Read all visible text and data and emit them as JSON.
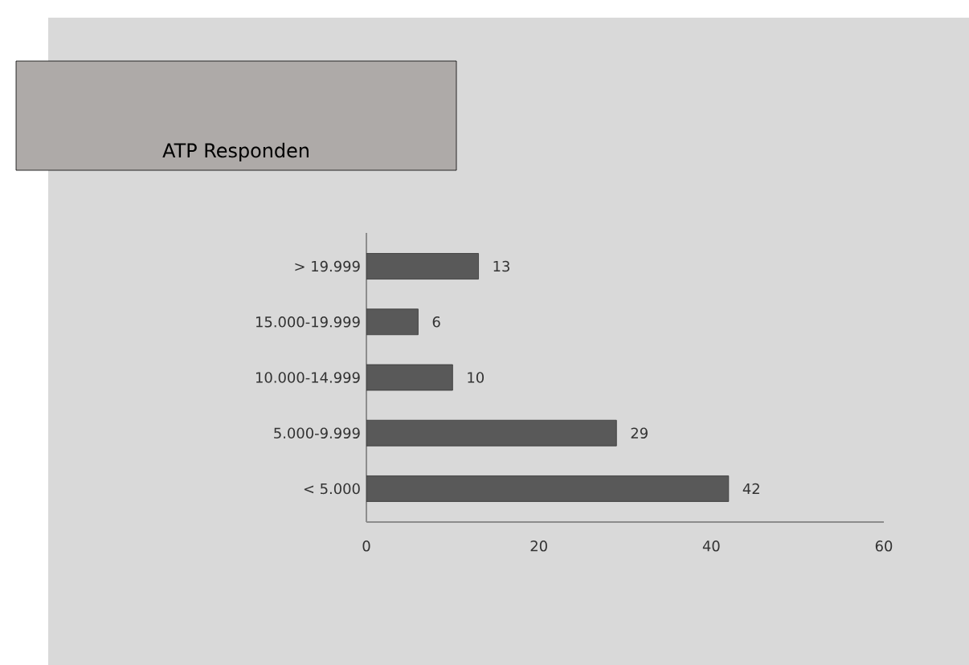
{
  "chart_data": {
    "type": "bar",
    "orientation": "horizontal",
    "title": "ATP Responden",
    "categories": [
      "> 19.999",
      "15.000-19.999",
      "10.000-14.999",
      "5.000-9.999",
      "< 5.000"
    ],
    "values": [
      13,
      6,
      10,
      29,
      42
    ],
    "color": "#595959",
    "xlim": [
      0,
      60
    ],
    "xticks": [
      0,
      20,
      40,
      60
    ],
    "data_labels": true,
    "grid": false
  }
}
